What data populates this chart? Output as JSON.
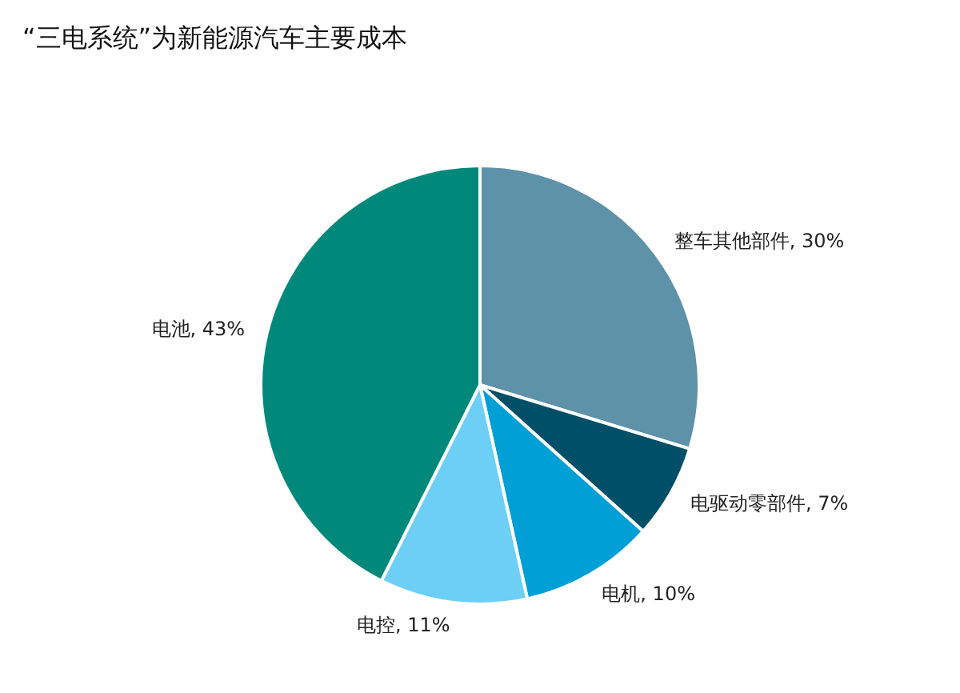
{
  "chart_data": {
    "type": "pie",
    "title": "“三电系统”为新能源汽车主要成本",
    "categories": [
      "整车其他部件",
      "电驱动零部件",
      "电机",
      "电控",
      "电池"
    ],
    "values": [
      30,
      7,
      10,
      11,
      43
    ],
    "value_labels": [
      "30%",
      "7%",
      "10%",
      "11%",
      "43%"
    ],
    "colors": [
      "#5e92a8",
      "#004f68",
      "#00a0d6",
      "#6dcff6",
      "#00897b"
    ],
    "legend": false
  }
}
